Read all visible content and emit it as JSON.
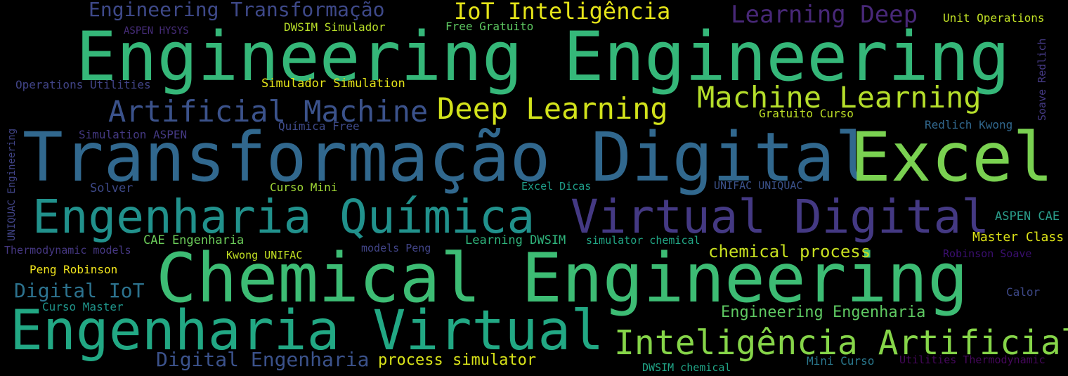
{
  "words": [
    {
      "text": "Engineering Engineering",
      "color": "#35b779"
    },
    {
      "text": "Transformação Digital",
      "color": "#31688e"
    },
    {
      "text": "Excel",
      "color": "#7ad151"
    },
    {
      "text": "Chemical Engineering",
      "color": "#3dbc74"
    },
    {
      "text": "Engenharia Virtual",
      "color": "#22a884"
    },
    {
      "text": "Engenharia Química",
      "color": "#21918c"
    },
    {
      "text": "Virtual Digital",
      "color": "#443983"
    },
    {
      "text": "Inteligência Artificial",
      "color": "#86d549"
    },
    {
      "text": "Deep Learning",
      "color": "#d2e21b"
    },
    {
      "text": "Machine Learning",
      "color": "#b5de2b"
    },
    {
      "text": "Artificial Machine",
      "color": "#3b528b"
    },
    {
      "text": "Engineering Transformação",
      "color": "#3e4989"
    },
    {
      "text": "IoT Inteligência",
      "color": "#e5e419"
    },
    {
      "text": "Learning Deep",
      "color": "#482878"
    },
    {
      "text": "Digital Engenharia",
      "color": "#3b528b"
    },
    {
      "text": "process simulator",
      "color": "#d8e219"
    },
    {
      "text": "chemical process",
      "color": "#c8e020"
    },
    {
      "text": "Engineering Engenharia",
      "color": "#5ec962"
    },
    {
      "text": "Digital IoT",
      "color": "#2c728e"
    },
    {
      "text": "Unit Operations",
      "color": "#c0df25"
    },
    {
      "text": "ASPEN HYSYS",
      "color": "#472d7b"
    },
    {
      "text": "DWSIM Simulador",
      "color": "#b8de29"
    },
    {
      "text": "Free Gratuito",
      "color": "#5ec962"
    },
    {
      "text": "Operations Utilities",
      "color": "#414487"
    },
    {
      "text": "Simulador Simulation",
      "color": "#e5e419"
    },
    {
      "text": "Gratuito Curso",
      "color": "#bddf26"
    },
    {
      "text": "Química Free",
      "color": "#3e4a89"
    },
    {
      "text": "Simulation ASPEN",
      "color": "#443983"
    },
    {
      "text": "Redlich Kwong",
      "color": "#31688e"
    },
    {
      "text": "Solver",
      "color": "#3e4989"
    },
    {
      "text": "Curso Mini",
      "color": "#a2da37"
    },
    {
      "text": "Excel Dicas",
      "color": "#1f9e89"
    },
    {
      "text": "UNIFAC UNIQUAC",
      "color": "#3b528b"
    },
    {
      "text": "ASPEN CAE",
      "color": "#2a9d8a"
    },
    {
      "text": "Master Class",
      "color": "#dde318"
    },
    {
      "text": "CAE Engenharia",
      "color": "#6ccd5a"
    },
    {
      "text": "Learning DWSIM",
      "color": "#2fb47c"
    },
    {
      "text": "simulator chemical",
      "color": "#21a685"
    },
    {
      "text": "Thermodynamic models",
      "color": "#453781"
    },
    {
      "text": "models Peng",
      "color": "#414487"
    },
    {
      "text": "Kwong UNIFAC",
      "color": "#c2df23"
    },
    {
      "text": "Robinson Soave",
      "color": "#3b0f70"
    },
    {
      "text": "Peng Robinson",
      "color": "#f1e51d"
    },
    {
      "text": "Curso Master",
      "color": "#1f958b"
    },
    {
      "text": "Calor",
      "color": "#3e4989"
    },
    {
      "text": "DWSIM chemical",
      "color": "#20a486"
    },
    {
      "text": "Mini Curso",
      "color": "#2a788e"
    },
    {
      "text": "Utilities Thermodynamic",
      "color": "#46085c"
    },
    {
      "text": "UNIQUAC Engineering",
      "color": "#414487"
    },
    {
      "text": "Soave Redlich",
      "color": "#443983"
    }
  ]
}
